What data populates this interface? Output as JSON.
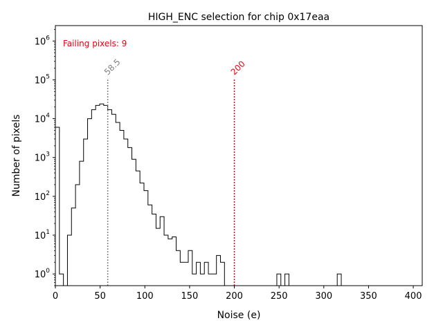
{
  "chart_data": {
    "type": "histogram",
    "title": "HIGH_ENC selection for chip 0x17eaa",
    "xlabel": "Noise (e)",
    "ylabel": "Number of pixels",
    "xlim": [
      0,
      410
    ],
    "ylim": [
      0.5,
      2500000
    ],
    "yscale": "log",
    "grid": false,
    "xticks": [
      0,
      50,
      100,
      150,
      200,
      250,
      300,
      350,
      400
    ],
    "yticks": [
      {
        "value": 1,
        "base": "10",
        "exp": "0"
      },
      {
        "value": 10,
        "base": "10",
        "exp": "1"
      },
      {
        "value": 100,
        "base": "10",
        "exp": "2"
      },
      {
        "value": 1000,
        "base": "10",
        "exp": "3"
      },
      {
        "value": 10000,
        "base": "10",
        "exp": "4"
      },
      {
        "value": 100000,
        "base": "10",
        "exp": "5"
      },
      {
        "value": 1000000,
        "base": "10",
        "exp": "6"
      }
    ],
    "bin_width": 4.5,
    "bin_start": 0,
    "counts": [
      6000,
      1,
      0,
      10,
      50,
      200,
      800,
      3000,
      10000,
      17000,
      22000,
      24000,
      22000,
      17000,
      13000,
      8000,
      5000,
      3000,
      1800,
      900,
      450,
      220,
      140,
      60,
      35,
      15,
      30,
      10,
      8,
      9,
      4,
      2,
      2,
      4,
      1,
      2,
      1,
      2,
      1,
      1,
      3,
      2,
      0,
      0,
      0,
      0,
      0,
      0,
      0,
      0,
      0,
      0,
      0,
      0,
      0,
      1,
      0,
      1,
      0,
      0,
      0,
      0,
      0,
      0,
      0,
      0,
      0,
      0,
      0,
      0,
      1
    ],
    "series": [
      {
        "name": "",
        "color": "#000000"
      }
    ],
    "vlines": [
      {
        "x": 58.5,
        "label": "58.5",
        "color": "#808080",
        "y_top": 110000
      },
      {
        "x": 200,
        "label": "200",
        "color": "#e8000b",
        "y_top": 110000
      }
    ],
    "annotation": {
      "text": "Failing pixels: 9",
      "color": "#e8000b"
    }
  }
}
